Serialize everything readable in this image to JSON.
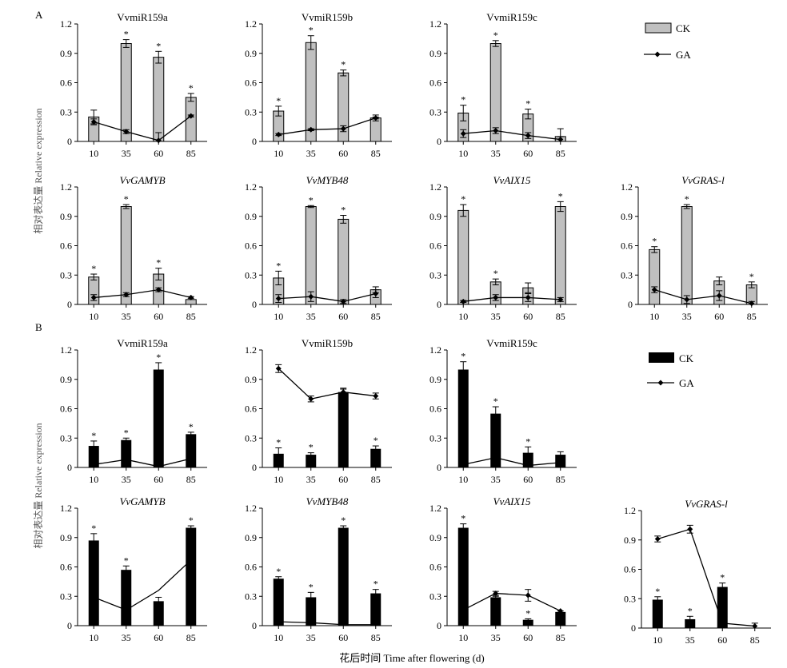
{
  "sections": [
    {
      "label": "A",
      "bar_color": "#c0c0c0",
      "legend": {
        "ck": "CK",
        "ga": "GA"
      },
      "y_axis_label": "相对表达量 Relative expression"
    },
    {
      "label": "B",
      "bar_color": "#000000",
      "legend": {
        "ck": "CK",
        "ga": "GA"
      },
      "y_axis_label": "相对表达量 Relative expression"
    }
  ],
  "x_axis_label": "花后时间 Time after flowering (d)",
  "chart_data": [
    {
      "type": "bar",
      "section": "A",
      "title": "VvmiR159a",
      "italic": false,
      "categories": [
        "10",
        "35",
        "60",
        "85"
      ],
      "ylim": [
        0,
        1.2
      ],
      "yticks": [
        "0",
        "0.3",
        "0.6",
        "0.9",
        "1.2"
      ],
      "series": [
        {
          "name": "CK",
          "values": [
            0.25,
            1.0,
            0.86,
            0.45
          ],
          "errors": [
            0.07,
            0.04,
            0.06,
            0.04
          ],
          "signif": [
            false,
            true,
            true,
            true
          ]
        },
        {
          "name": "GA",
          "values": [
            0.2,
            0.1,
            0.01,
            0.26
          ],
          "errors": [
            0.03,
            0.02,
            0.08,
            0.01
          ]
        }
      ]
    },
    {
      "type": "bar",
      "section": "A",
      "title": "VvmiR159b",
      "italic": false,
      "categories": [
        "10",
        "35",
        "60",
        "85"
      ],
      "ylim": [
        0,
        1.2
      ],
      "yticks": [
        "0",
        "0.3",
        "0.6",
        "0.9",
        "1.2"
      ],
      "series": [
        {
          "name": "CK",
          "values": [
            0.31,
            1.01,
            0.7,
            0.24
          ],
          "errors": [
            0.05,
            0.07,
            0.03,
            0.03
          ],
          "signif": [
            true,
            true,
            true,
            false
          ]
        },
        {
          "name": "GA",
          "values": [
            0.07,
            0.12,
            0.13,
            0.24
          ],
          "errors": [
            0.01,
            0.01,
            0.03,
            0.01
          ]
        }
      ]
    },
    {
      "type": "bar",
      "section": "A",
      "title": "VvmiR159c",
      "italic": false,
      "categories": [
        "10",
        "35",
        "60",
        "85"
      ],
      "ylim": [
        0,
        1.2
      ],
      "yticks": [
        "0",
        "0.3",
        "0.6",
        "0.9",
        "1.2"
      ],
      "series": [
        {
          "name": "CK",
          "values": [
            0.29,
            1.0,
            0.28,
            0.05
          ],
          "errors": [
            0.08,
            0.03,
            0.05,
            0.08
          ],
          "signif": [
            true,
            true,
            true,
            false
          ]
        },
        {
          "name": "GA",
          "values": [
            0.08,
            0.11,
            0.06,
            0.02
          ],
          "errors": [
            0.04,
            0.03,
            0.03,
            0.03
          ]
        }
      ]
    },
    {
      "type": "bar",
      "section": "A",
      "title": "VvGAMYB",
      "italic": true,
      "categories": [
        "10",
        "35",
        "60",
        "85"
      ],
      "ylim": [
        0,
        1.2
      ],
      "yticks": [
        "0",
        "0.3",
        "0.6",
        "0.9",
        "1.2"
      ],
      "series": [
        {
          "name": "CK",
          "values": [
            0.28,
            1.0,
            0.31,
            0.05
          ],
          "errors": [
            0.03,
            0.02,
            0.06,
            0.0
          ],
          "signif": [
            true,
            true,
            true,
            false
          ]
        },
        {
          "name": "GA",
          "values": [
            0.07,
            0.1,
            0.15,
            0.07
          ],
          "errors": [
            0.03,
            0.02,
            0.02,
            0.01
          ]
        }
      ]
    },
    {
      "type": "bar",
      "section": "A",
      "title": "VvMYB48",
      "italic": true,
      "categories": [
        "10",
        "35",
        "60",
        "85"
      ],
      "ylim": [
        0,
        1.2
      ],
      "yticks": [
        "0",
        "0.3",
        "0.6",
        "0.9",
        "1.2"
      ],
      "series": [
        {
          "name": "CK",
          "values": [
            0.27,
            1.0,
            0.87,
            0.15
          ],
          "errors": [
            0.07,
            0.01,
            0.04,
            0.03
          ],
          "signif": [
            true,
            true,
            true,
            false
          ]
        },
        {
          "name": "GA",
          "values": [
            0.06,
            0.08,
            0.03,
            0.11
          ],
          "errors": [
            0.04,
            0.05,
            0.02,
            0.04
          ]
        }
      ]
    },
    {
      "type": "bar",
      "section": "A",
      "title": "VvAIX15",
      "italic": true,
      "categories": [
        "10",
        "35",
        "60",
        "85"
      ],
      "ylim": [
        0,
        1.2
      ],
      "yticks": [
        "0",
        "0.3",
        "0.6",
        "0.9",
        "1.2"
      ],
      "series": [
        {
          "name": "CK",
          "values": [
            0.96,
            0.23,
            0.17,
            1.0
          ],
          "errors": [
            0.06,
            0.03,
            0.05,
            0.05
          ],
          "signif": [
            true,
            true,
            false,
            true
          ]
        },
        {
          "name": "GA",
          "values": [
            0.03,
            0.07,
            0.07,
            0.05
          ],
          "errors": [
            0.01,
            0.03,
            0.04,
            0.02
          ]
        }
      ]
    },
    {
      "type": "bar",
      "section": "A",
      "title": "VvGRAS-l",
      "italic": true,
      "categories": [
        "10",
        "35",
        "60",
        "85"
      ],
      "ylim": [
        0,
        1.2
      ],
      "yticks": [
        "0",
        "0.3",
        "0.6",
        "0.9",
        "1.2"
      ],
      "series": [
        {
          "name": "CK",
          "values": [
            0.56,
            1.0,
            0.24,
            0.2
          ],
          "errors": [
            0.03,
            0.02,
            0.04,
            0.03
          ],
          "signif": [
            true,
            true,
            false,
            true
          ]
        },
        {
          "name": "GA",
          "values": [
            0.15,
            0.05,
            0.09,
            0.01
          ],
          "errors": [
            0.03,
            0.04,
            0.05,
            0.02
          ]
        }
      ]
    },
    {
      "type": "bar",
      "section": "B",
      "title": "VvmiR159a",
      "italic": false,
      "categories": [
        "10",
        "35",
        "60",
        "85"
      ],
      "ylim": [
        0,
        1.2
      ],
      "yticks": [
        "0",
        "0.3",
        "0.6",
        "0.9",
        "1.2"
      ],
      "series": [
        {
          "name": "CK",
          "values": [
            0.22,
            0.28,
            1.0,
            0.34
          ],
          "errors": [
            0.05,
            0.02,
            0.07,
            0.02
          ],
          "signif": [
            true,
            true,
            true,
            true
          ]
        },
        {
          "name": "GA",
          "values": [
            0.03,
            0.08,
            0.01,
            0.09
          ]
        }
      ]
    },
    {
      "type": "bar",
      "section": "B",
      "title": "VvmiR159b",
      "italic": false,
      "categories": [
        "10",
        "35",
        "60",
        "85"
      ],
      "ylim": [
        0,
        1.2
      ],
      "yticks": [
        "0",
        "0.3",
        "0.6",
        "0.9",
        "1.2"
      ],
      "series": [
        {
          "name": "CK",
          "values": [
            0.14,
            0.13,
            0.77,
            0.19
          ],
          "errors": [
            0.06,
            0.02,
            0.03,
            0.03
          ],
          "signif": [
            true,
            true,
            false,
            true
          ]
        },
        {
          "name": "GA",
          "values": [
            1.01,
            0.7,
            0.77,
            0.73
          ],
          "errors": [
            0.04,
            0.03,
            0.04,
            0.03
          ],
          "markers": true
        }
      ]
    },
    {
      "type": "bar",
      "section": "B",
      "title": "VvmiR159c",
      "italic": false,
      "categories": [
        "10",
        "35",
        "60",
        "85"
      ],
      "ylim": [
        0,
        1.2
      ],
      "yticks": [
        "0",
        "0.3",
        "0.6",
        "0.9",
        "1.2"
      ],
      "series": [
        {
          "name": "CK",
          "values": [
            1.0,
            0.55,
            0.15,
            0.13
          ],
          "errors": [
            0.08,
            0.07,
            0.06,
            0.03
          ],
          "signif": [
            true,
            true,
            true,
            false
          ]
        },
        {
          "name": "GA",
          "values": [
            0.03,
            0.1,
            0.02,
            0.05
          ]
        }
      ]
    },
    {
      "type": "bar",
      "section": "B",
      "title": "VvGAMYB",
      "italic": true,
      "categories": [
        "10",
        "35",
        "60",
        "85"
      ],
      "ylim": [
        0,
        1.2
      ],
      "yticks": [
        "0",
        "0.3",
        "0.6",
        "0.9",
        "1.2"
      ],
      "series": [
        {
          "name": "CK",
          "values": [
            0.87,
            0.57,
            0.25,
            1.0
          ],
          "errors": [
            0.07,
            0.04,
            0.04,
            0.02
          ],
          "signif": [
            true,
            true,
            false,
            true
          ]
        },
        {
          "name": "GA",
          "values": [
            0.29,
            0.16,
            0.36,
            0.67
          ]
        }
      ]
    },
    {
      "type": "bar",
      "section": "B",
      "title": "VvMYB48",
      "italic": true,
      "categories": [
        "10",
        "35",
        "60",
        "85"
      ],
      "ylim": [
        0,
        1.2
      ],
      "yticks": [
        "0",
        "0.3",
        "0.6",
        "0.9",
        "1.2"
      ],
      "series": [
        {
          "name": "CK",
          "values": [
            0.48,
            0.29,
            1.0,
            0.33
          ],
          "errors": [
            0.02,
            0.05,
            0.02,
            0.04
          ],
          "signif": [
            true,
            true,
            true,
            true
          ]
        },
        {
          "name": "GA",
          "values": [
            0.04,
            0.03,
            0.01,
            0.01
          ]
        }
      ]
    },
    {
      "type": "bar",
      "section": "B",
      "title": "VvAIX15",
      "italic": true,
      "categories": [
        "10",
        "35",
        "60",
        "85"
      ],
      "ylim": [
        0,
        1.2
      ],
      "yticks": [
        "0",
        "0.3",
        "0.6",
        "0.9",
        "1.2"
      ],
      "series": [
        {
          "name": "CK",
          "values": [
            1.0,
            0.29,
            0.06,
            0.14
          ],
          "errors": [
            0.04,
            0.01,
            0.01,
            0.01
          ],
          "signif": [
            true,
            false,
            true,
            false
          ]
        },
        {
          "name": "GA",
          "values": [
            0.16,
            0.33,
            0.31,
            0.15
          ],
          "errors": [
            0.0,
            0.02,
            0.06,
            0.0
          ],
          "markers": true
        }
      ]
    },
    {
      "type": "bar",
      "section": "B",
      "title": "VvGRAS-l",
      "italic": true,
      "categories": [
        "10",
        "35",
        "60",
        "85"
      ],
      "ylim": [
        0,
        1.2
      ],
      "yticks": [
        "0",
        "0.3",
        "0.6",
        "0.9",
        "1.2"
      ],
      "series": [
        {
          "name": "CK",
          "values": [
            0.29,
            0.09,
            0.42,
            0.0
          ],
          "errors": [
            0.03,
            0.03,
            0.04,
            0.0
          ],
          "signif": [
            true,
            true,
            true,
            false
          ]
        },
        {
          "name": "GA",
          "values": [
            0.91,
            1.01,
            0.05,
            0.02
          ],
          "errors": [
            0.03,
            0.04,
            0.0,
            0.03
          ],
          "markers": true
        }
      ]
    }
  ]
}
